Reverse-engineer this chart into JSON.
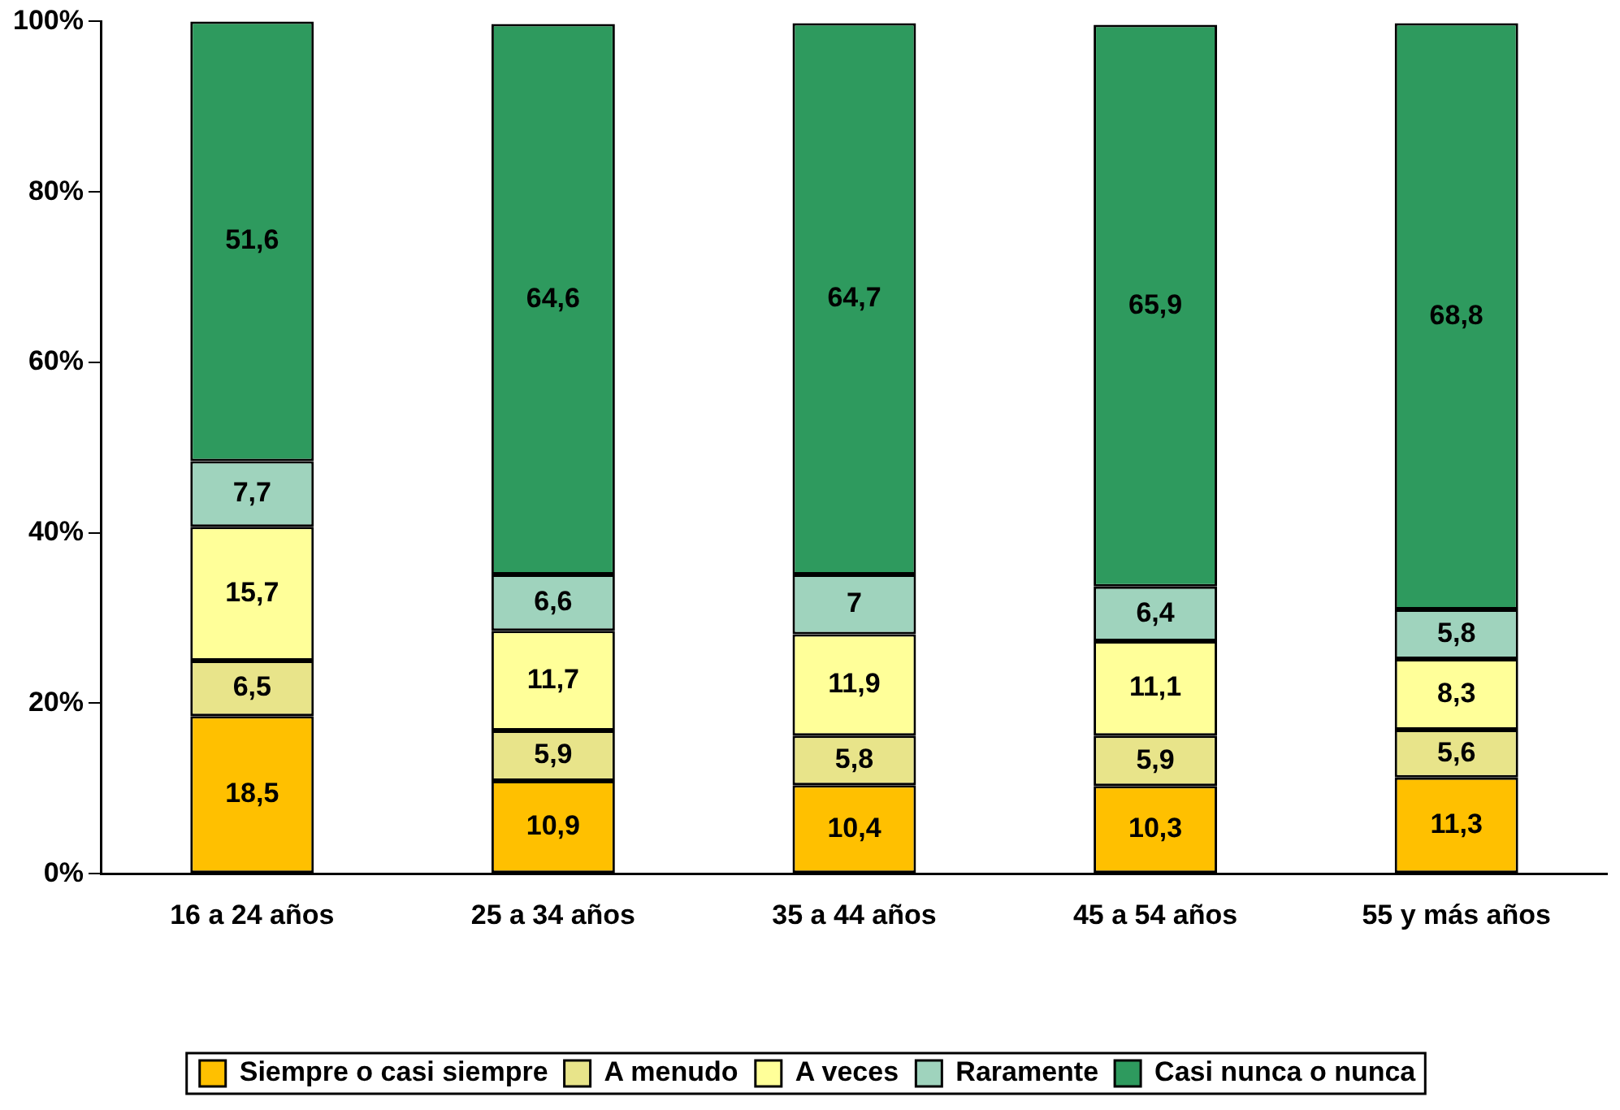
{
  "chart_data": {
    "type": "bar",
    "stacked": true,
    "categories": [
      "16 a 24 años",
      "25 a 34 años",
      "35 a 44 años",
      "45 a 54 años",
      "55 y más años"
    ],
    "series": [
      {
        "name": "Siempre o casi siempre",
        "color": "#ffc000",
        "values": [
          18.5,
          10.9,
          10.4,
          10.3,
          11.3
        ],
        "value_labels": [
          "18,5",
          "10,9",
          "10,4",
          "10,3",
          "11,3"
        ]
      },
      {
        "name": "A menudo",
        "color": "#e8e48a",
        "values": [
          6.5,
          5.9,
          5.8,
          5.9,
          5.6
        ],
        "value_labels": [
          "6,5",
          "5,9",
          "5,8",
          "5,9",
          "5,6"
        ]
      },
      {
        "name": "A veces",
        "color": "#ffff99",
        "values": [
          15.7,
          11.7,
          11.9,
          11.1,
          8.3
        ],
        "value_labels": [
          "15,7",
          "11,7",
          "11,9",
          "11,1",
          "8,3"
        ]
      },
      {
        "name": "Raramente",
        "color": "#9fd3bd",
        "values": [
          7.7,
          6.6,
          7,
          6.4,
          5.8
        ],
        "value_labels": [
          "7,7",
          "6,6",
          "7",
          "6,4",
          "5,8"
        ]
      },
      {
        "name": "Casi nunca o nunca",
        "color": "#2e9a5e",
        "values": [
          51.6,
          64.6,
          64.7,
          65.9,
          68.8
        ],
        "value_labels": [
          "51,6",
          "64,6",
          "64,7",
          "65,9",
          "68,8"
        ]
      }
    ],
    "ylim": [
      0,
      100
    ],
    "yticks": [
      {
        "value": 0,
        "label": "0%"
      },
      {
        "value": 20,
        "label": "20%"
      },
      {
        "value": 40,
        "label": "40%"
      },
      {
        "value": 60,
        "label": "60%"
      },
      {
        "value": 80,
        "label": "80%"
      },
      {
        "value": 100,
        "label": "100%"
      }
    ],
    "grid": false,
    "legend": "bottom"
  }
}
